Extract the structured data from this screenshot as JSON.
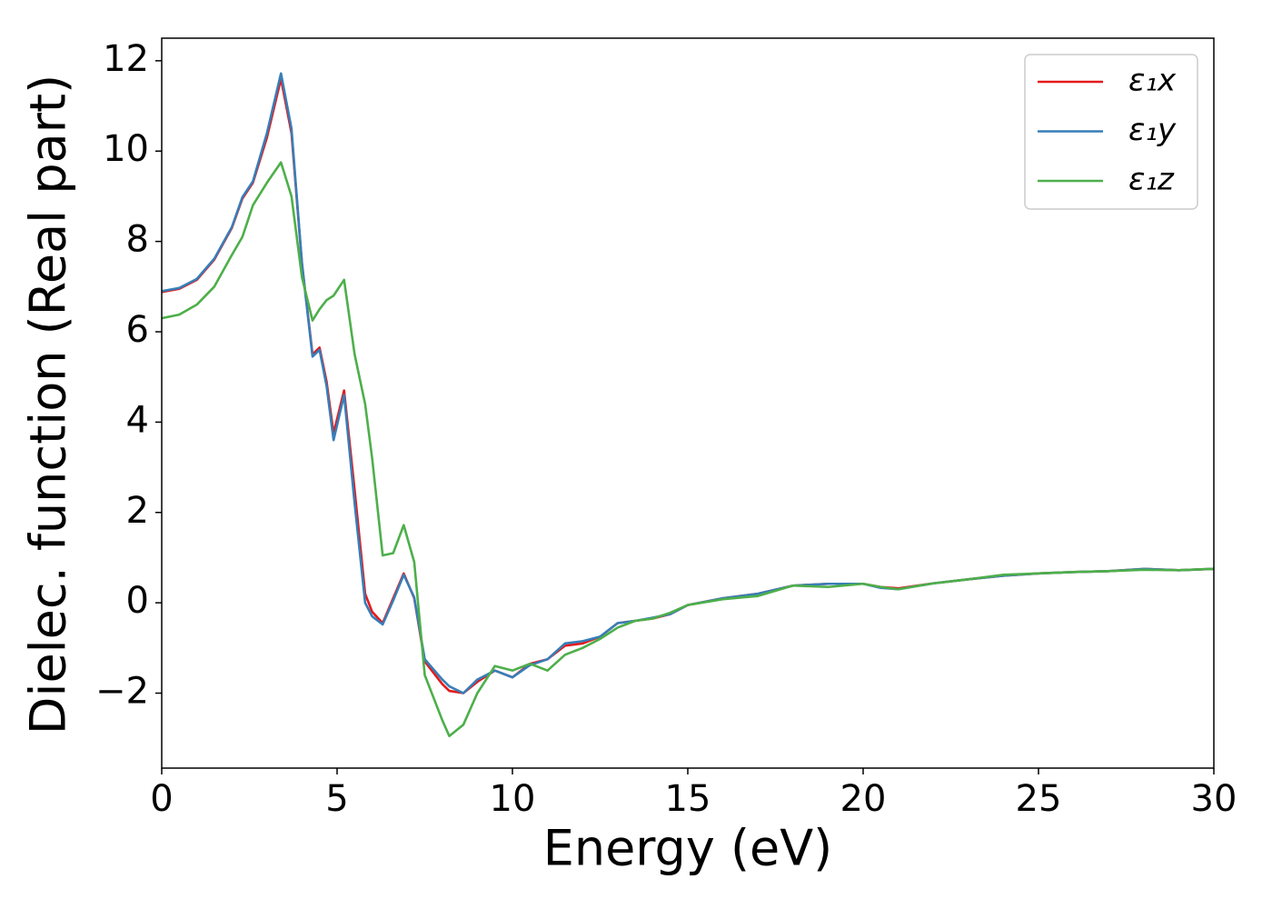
{
  "chart_data": {
    "type": "line",
    "xlabel": "Energy (eV)",
    "ylabel": "Dielec. function (Real part)",
    "x": [
      0,
      0.5,
      1,
      1.5,
      2,
      2.3,
      2.6,
      3,
      3.4,
      3.7,
      4,
      4.3,
      4.5,
      4.7,
      4.9,
      5.2,
      5.5,
      5.8,
      6.0,
      6.3,
      6.6,
      6.9,
      7.2,
      7.5,
      8,
      8.2,
      8.6,
      9,
      9.5,
      10,
      10.5,
      11,
      11.5,
      12,
      12.5,
      13,
      13.5,
      14,
      14.5,
      15,
      16,
      17,
      18,
      19,
      20,
      20.5,
      21,
      22,
      23,
      24,
      25,
      26,
      27,
      28,
      29,
      30
    ],
    "series": [
      {
        "name": "ε₁x",
        "color": "#e41a1c",
        "values": [
          6.88,
          6.95,
          7.15,
          7.6,
          8.3,
          8.95,
          9.3,
          10.3,
          11.6,
          10.4,
          7.5,
          5.5,
          5.65,
          4.9,
          3.75,
          4.7,
          2.5,
          0.2,
          -0.2,
          -0.45,
          0.1,
          0.65,
          0.1,
          -1.3,
          -1.8,
          -1.95,
          -2.0,
          -1.75,
          -1.5,
          -1.65,
          -1.35,
          -1.25,
          -0.95,
          -0.9,
          -0.75,
          -0.45,
          -0.4,
          -0.35,
          -0.25,
          -0.05,
          0.1,
          0.2,
          0.38,
          0.42,
          0.42,
          0.35,
          0.32,
          0.43,
          0.52,
          0.6,
          0.65,
          0.68,
          0.7,
          0.75,
          0.72,
          0.75
        ]
      },
      {
        "name": "ε₁y",
        "color": "#377eb8",
        "values": [
          6.9,
          6.97,
          7.17,
          7.62,
          8.32,
          8.98,
          9.33,
          10.4,
          11.72,
          10.5,
          7.5,
          5.45,
          5.6,
          4.8,
          3.6,
          4.6,
          2.2,
          0.0,
          -0.3,
          -0.48,
          0.05,
          0.62,
          0.12,
          -1.25,
          -1.7,
          -1.85,
          -2.0,
          -1.7,
          -1.5,
          -1.65,
          -1.38,
          -1.25,
          -0.9,
          -0.85,
          -0.75,
          -0.45,
          -0.4,
          -0.33,
          -0.25,
          -0.05,
          0.1,
          0.2,
          0.38,
          0.42,
          0.42,
          0.33,
          0.3,
          0.43,
          0.52,
          0.6,
          0.65,
          0.68,
          0.7,
          0.75,
          0.72,
          0.75
        ]
      },
      {
        "name": "ε₁z",
        "color": "#4daf4a",
        "values": [
          6.3,
          6.38,
          6.6,
          7.0,
          7.7,
          8.1,
          8.8,
          9.3,
          9.75,
          9.0,
          7.2,
          6.25,
          6.5,
          6.7,
          6.8,
          7.15,
          5.5,
          4.4,
          3.2,
          1.05,
          1.1,
          1.72,
          0.9,
          -1.6,
          -2.6,
          -2.95,
          -2.7,
          -2.0,
          -1.4,
          -1.5,
          -1.35,
          -1.5,
          -1.15,
          -1.0,
          -0.8,
          -0.55,
          -0.4,
          -0.35,
          -0.22,
          -0.05,
          0.08,
          0.15,
          0.38,
          0.35,
          0.42,
          0.35,
          0.3,
          0.43,
          0.52,
          0.62,
          0.65,
          0.68,
          0.7,
          0.73,
          0.72,
          0.75
        ]
      }
    ],
    "xlim": [
      0,
      30
    ],
    "xticks": [
      0,
      5,
      10,
      15,
      20,
      25,
      30
    ],
    "ylim": [
      -3.66,
      12.5
    ],
    "yticks": [
      {
        "value": -2,
        "label": "−2"
      },
      0,
      2,
      4,
      6,
      8,
      10,
      12
    ],
    "grid": false,
    "legend": "upper right"
  }
}
